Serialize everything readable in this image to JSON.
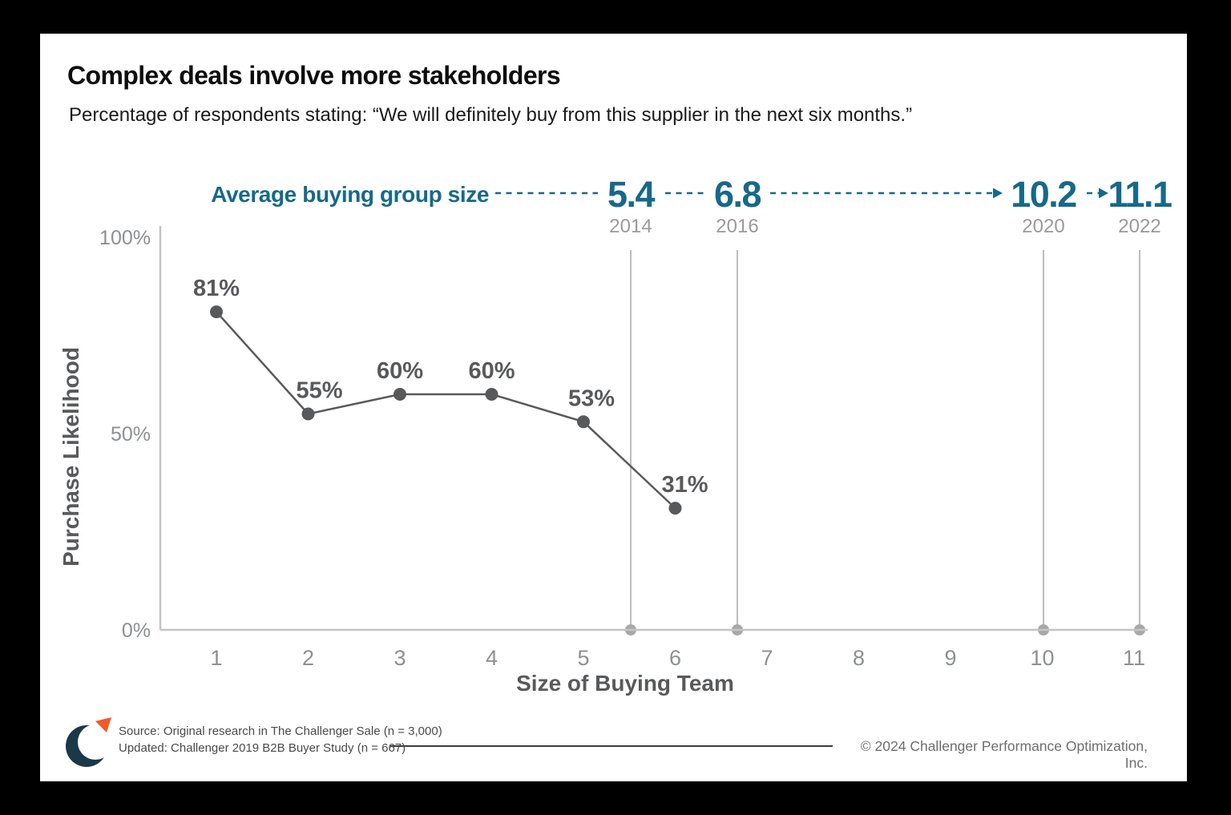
{
  "chart_data": {
    "type": "line",
    "title": "Complex deals involve more stakeholders",
    "subtitle": "Percentage of respondents stating: “We will definitely buy from this supplier in the next six months.”",
    "xlabel": "Size of Buying Team",
    "ylabel": "Purchase Likelihood",
    "x": [
      1,
      2,
      3,
      4,
      5,
      6
    ],
    "values": [
      81,
      55,
      60,
      60,
      53,
      31
    ],
    "point_labels": [
      "81%",
      "55%",
      "60%",
      "60%",
      "53%",
      "31%"
    ],
    "x_ticks": [
      "1",
      "2",
      "3",
      "4",
      "5",
      "6",
      "7",
      "8",
      "9",
      "10",
      "11"
    ],
    "y_ticks": [
      {
        "label": "100%",
        "value": 100
      },
      {
        "label": "50%",
        "value": 50
      },
      {
        "label": "0%",
        "value": 0
      }
    ],
    "xlim": [
      0.4,
      11.15
    ],
    "ylim": [
      0,
      100
    ],
    "grid": "vertical-year-lines-only",
    "legend": "none",
    "annotation": {
      "label": "Average buying group size",
      "milestones": [
        {
          "size": "5.4",
          "year": "2014"
        },
        {
          "size": "6.8",
          "year": "2016"
        },
        {
          "size": "10.2",
          "year": "2020"
        },
        {
          "size": "11.1",
          "year": "2022"
        }
      ]
    }
  },
  "footer": {
    "source_line1": "Source: Original research in The Challenger Sale (n = 3,000)",
    "source_line2": "Updated: Challenger 2019 B2B Buyer Study (n = 667)",
    "copyright": "© 2024 Challenger Performance Optimization, Inc."
  },
  "colors": {
    "teal": "#16698A",
    "series_dark_gray": "#58595B",
    "axis_gray": "#C4C4C4",
    "year_line_gray": "#BDBDBD",
    "year_dot_gray": "#A8A8A8",
    "tick_label_gray": "#8D9092",
    "year_label_gray": "#9A9A9A",
    "logo_navy": "#1B3848",
    "logo_orange": "#F15A29",
    "background": "#FFFFFF",
    "frame": "#000000"
  }
}
